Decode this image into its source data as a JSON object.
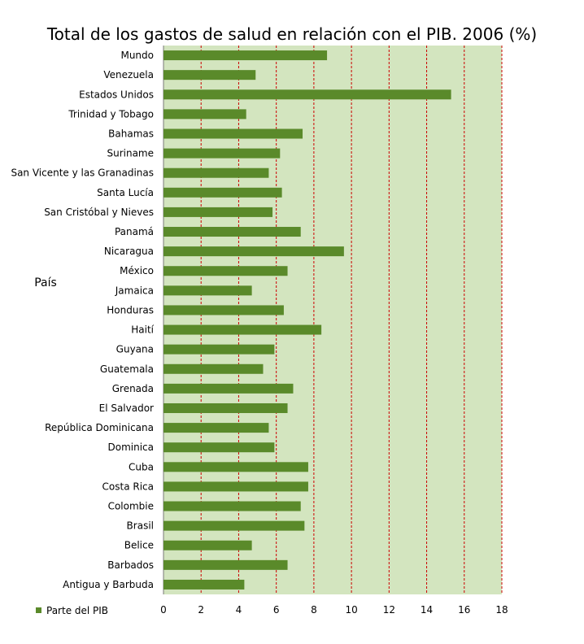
{
  "chart_data": {
    "type": "bar",
    "orientation": "horizontal",
    "title": "Total de los gastos de salud en relación con el PIB. 2006 (%)",
    "ylabel": "País",
    "xlabel": "",
    "categories": [
      "Mundo",
      "Venezuela",
      "Estados Unidos",
      "Trinidad y Tobago",
      "Bahamas",
      "Suriname",
      "San Vicente y las Granadinas",
      "Santa Lucía",
      "San Cristóbal y Nieves",
      "Panamá",
      "Nicaragua",
      "México",
      "Jamaica",
      "Honduras",
      "Haití",
      "Guyana",
      "Guatemala",
      "Grenada",
      "El Salvador",
      "República Dominicana",
      "Dominica",
      "Cuba",
      "Costa Rica",
      "Colombie",
      "Brasil",
      "Belice",
      "Barbados",
      "Antigua y Barbuda"
    ],
    "series": [
      {
        "name": "Parte del PIB",
        "color": "#5a8a2a",
        "values": [
          8.7,
          4.9,
          15.3,
          4.4,
          7.4,
          6.2,
          5.6,
          6.3,
          5.8,
          7.3,
          9.6,
          6.6,
          4.7,
          6.4,
          8.4,
          5.9,
          5.3,
          6.9,
          6.6,
          5.6,
          5.9,
          7.7,
          7.7,
          7.3,
          7.5,
          4.7,
          6.6,
          4.3
        ]
      }
    ],
    "xticks": [
      "0",
      "2",
      "4",
      "6",
      "8",
      "10",
      "12",
      "14",
      "16",
      "18"
    ],
    "xlim": [
      0,
      18
    ],
    "grid": true,
    "plot_background": "#d3e5bf",
    "grid_color": "#cc0000",
    "legend_position": "bottom-left"
  }
}
